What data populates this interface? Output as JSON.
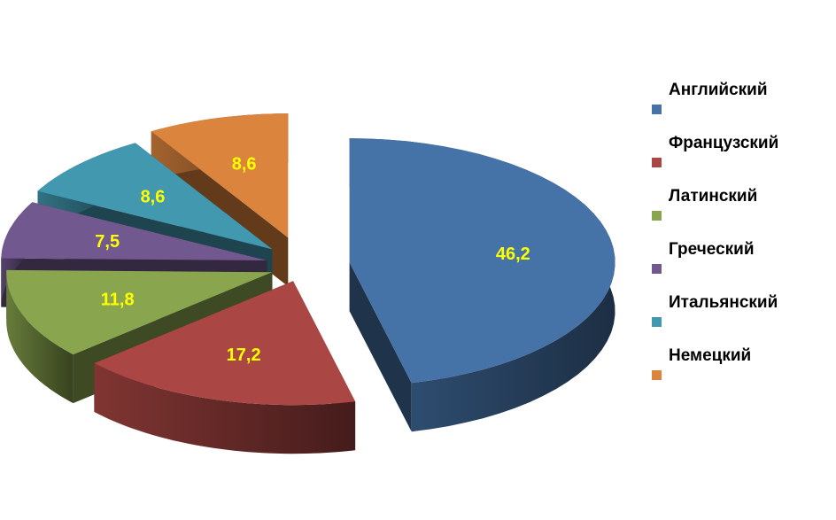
{
  "chart_data": {
    "type": "pie",
    "style": "3d-exploded",
    "categories": [
      "Английский",
      "Французский",
      "Латинский",
      "Греческий",
      "Итальянский",
      "Немецкий"
    ],
    "values": [
      46.2,
      17.2,
      11.8,
      7.5,
      8.6,
      8.6
    ],
    "labels": [
      "46,2",
      "17,2",
      "11,8",
      "7,5",
      "8,6",
      "8,6"
    ],
    "colors": [
      "#4572A7",
      "#AA4643",
      "#89A54E",
      "#71588F",
      "#4198AF",
      "#DB843D"
    ],
    "label_color": "#FFFF00",
    "legend_position": "right"
  }
}
